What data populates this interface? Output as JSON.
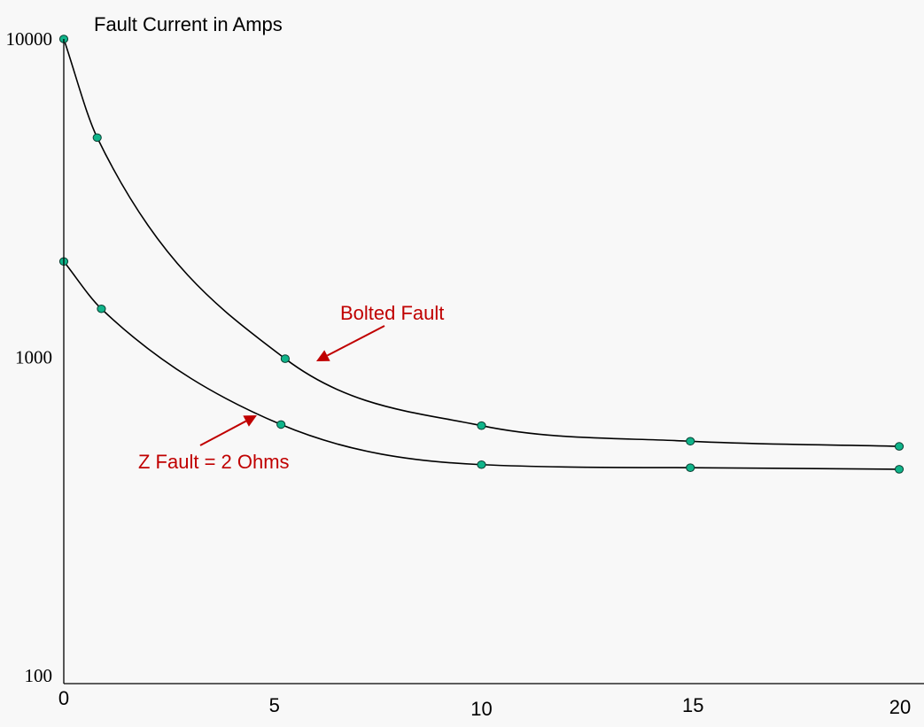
{
  "chart_data": {
    "type": "line",
    "title": "Fault Current in Amps",
    "xlabel": "",
    "ylabel": "",
    "xlim": [
      0,
      20
    ],
    "ylim": [
      100,
      10000
    ],
    "yscale": "log",
    "grid": false,
    "x_ticks": [
      "0",
      "5",
      "10",
      "15",
      "20"
    ],
    "y_ticks": [
      "100",
      "1000",
      "10000"
    ],
    "series": [
      {
        "name": "Bolted Fault",
        "color": "#000000",
        "marker_color": "#10b48a",
        "points": [
          {
            "x": 0,
            "y": 10000
          },
          {
            "x": 0.8,
            "y": 4900
          },
          {
            "x": 5.3,
            "y": 990
          },
          {
            "x": 10.0,
            "y": 610
          },
          {
            "x": 15.0,
            "y": 545
          },
          {
            "x": 20.0,
            "y": 525
          }
        ]
      },
      {
        "name": "Z Fault = 2 Ohms",
        "color": "#000000",
        "marker_color": "#10b48a",
        "points": [
          {
            "x": 0,
            "y": 2000
          },
          {
            "x": 0.9,
            "y": 1420
          },
          {
            "x": 5.2,
            "y": 615
          },
          {
            "x": 10.0,
            "y": 460
          },
          {
            "x": 15.0,
            "y": 450
          },
          {
            "x": 20.0,
            "y": 445
          }
        ]
      }
    ],
    "annotations": [
      {
        "text": "Bolted Fault",
        "color": "#c00000",
        "series": 0
      },
      {
        "text": "Z Fault = 2 Ohms",
        "color": "#c00000",
        "series": 1
      }
    ]
  }
}
